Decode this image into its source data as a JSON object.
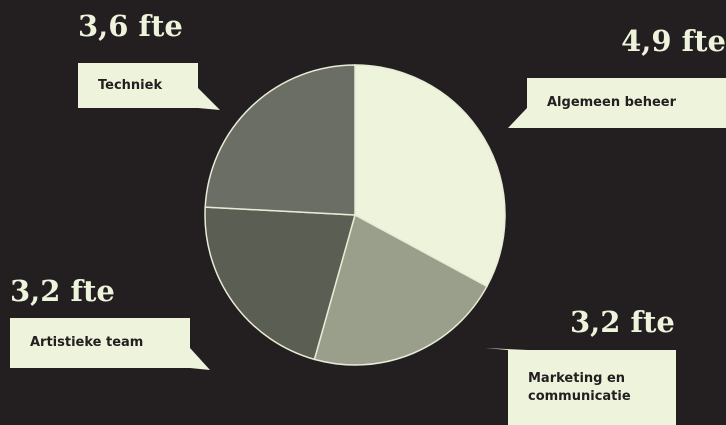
{
  "chart_data": {
    "type": "pie",
    "categories": [
      "Algemeen beheer",
      "Marketing en communicatie",
      "Artistieke team",
      "Techniek"
    ],
    "values": [
      4.9,
      3.2,
      3.2,
      3.6
    ],
    "value_labels": [
      "4,9 fte",
      "3,2 fte",
      "3,2 fte",
      "3,6 fte"
    ],
    "colors": [
      "#eef3dc",
      "#9a9f8c",
      "#5b5e52",
      "#6b6e64"
    ]
  }
}
